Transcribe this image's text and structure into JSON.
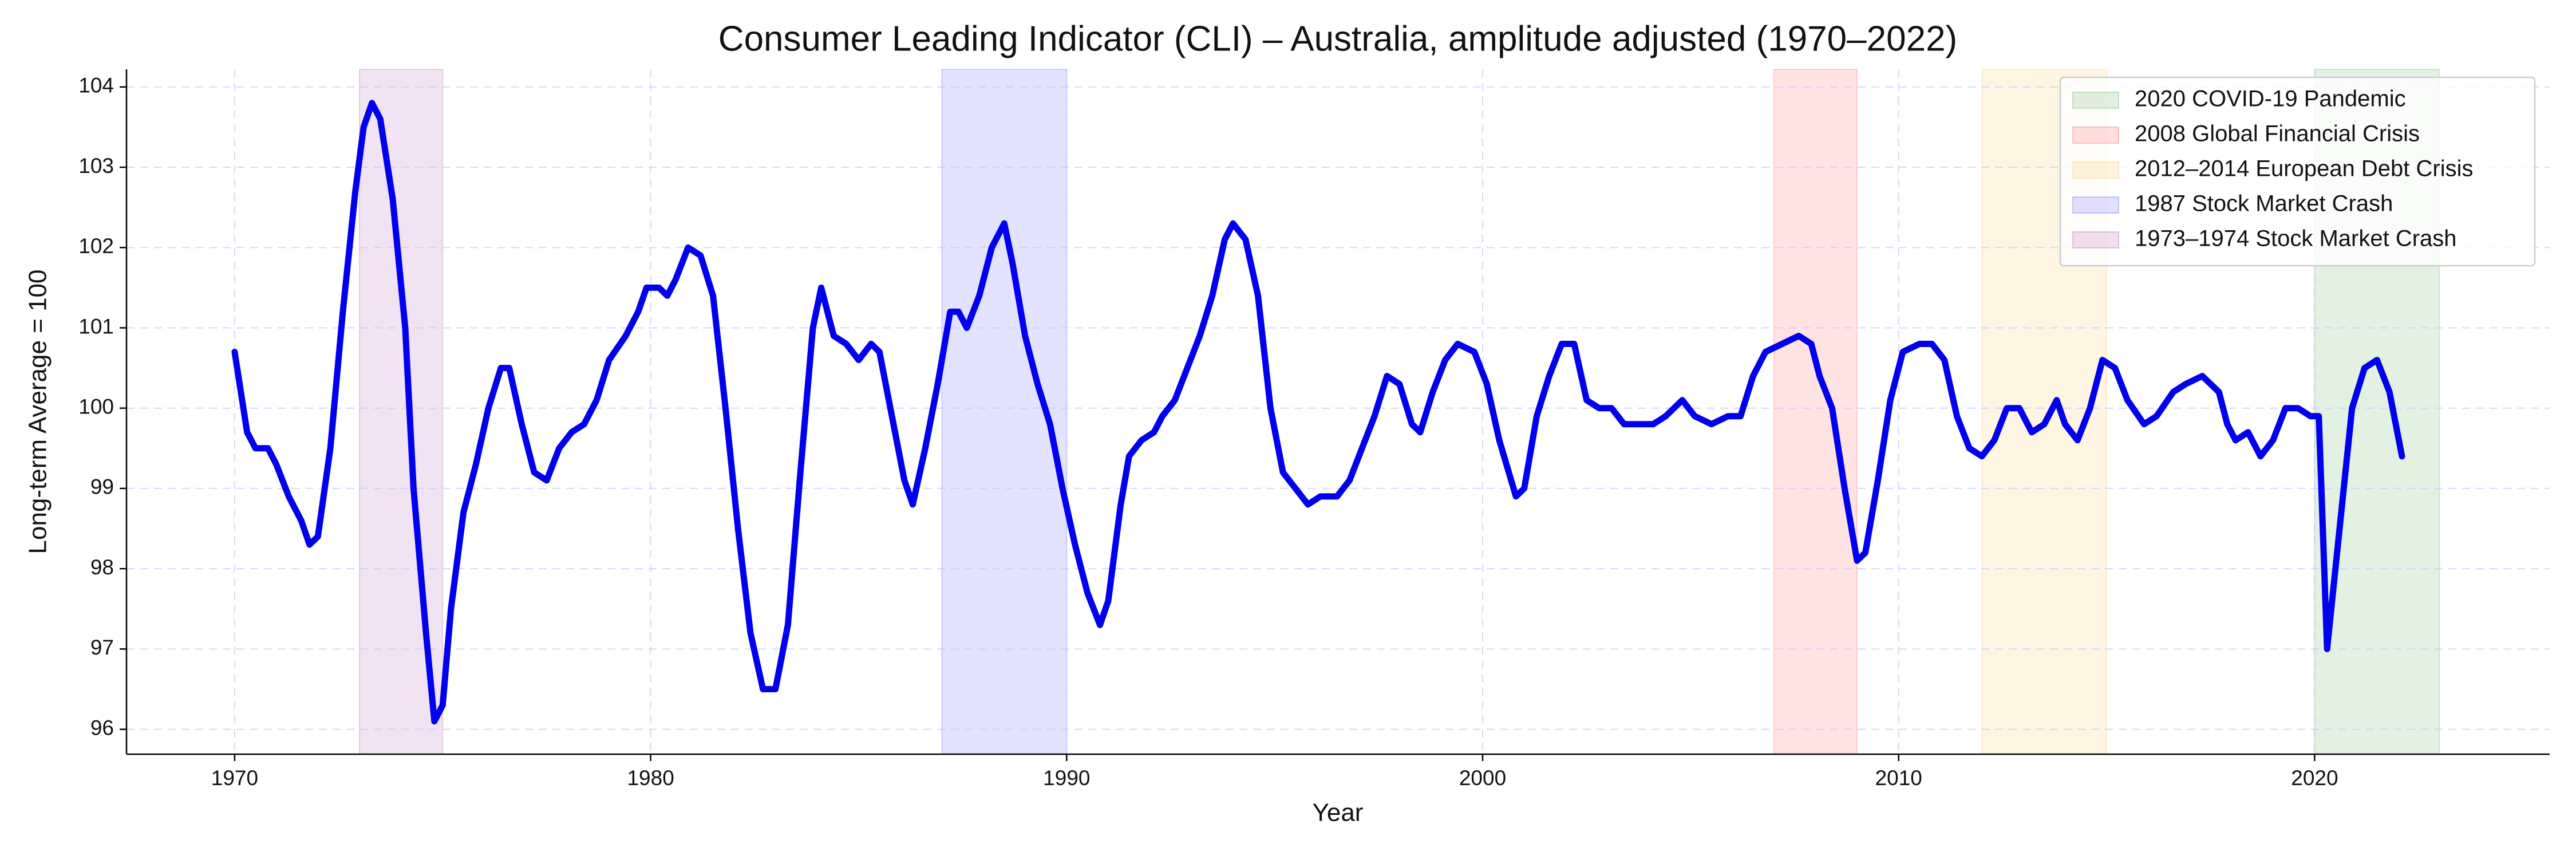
{
  "chart_data": {
    "type": "line",
    "title": "Consumer Leading Indicator (CLI) – Australia, amplitude adjusted (1970–2022)",
    "x_label": "Year",
    "y_label": "Long-term Average = 100",
    "xlim": [
      1967.4,
      2025.65
    ],
    "ylim": [
      95.69,
      104.22
    ],
    "xticks": [
      1970,
      1980,
      1990,
      2000,
      2010,
      2020
    ],
    "yticks": [
      96,
      97,
      98,
      99,
      100,
      101,
      102,
      103,
      104
    ],
    "grid": true,
    "legend": "upper right",
    "spans": [
      {
        "name": "2020 COVID-19 Pandemic",
        "start": 2020,
        "end": 2023,
        "color": "#008000"
      },
      {
        "name": "2008 Global Financial Crisis",
        "start": 2007,
        "end": 2009,
        "color": "#ff0000"
      },
      {
        "name": "2012–2014 European Debt Crisis",
        "start": 2012,
        "end": 2015,
        "color": "#ffa500"
      },
      {
        "name": "1987 Stock Market Crash",
        "start": 1987,
        "end": 1990,
        "color": "#0000ff"
      },
      {
        "name": "1973–1974 Stock Market Crash",
        "start": 1973,
        "end": 1975,
        "color": "#800080"
      }
    ],
    "series": [
      {
        "color": "#0000ee",
        "x": [
          1970.0,
          1970.3,
          1970.5,
          1970.8,
          1971.0,
          1971.3,
          1971.6,
          1971.8,
          1972.0,
          1972.3,
          1972.6,
          1972.9,
          1973.1,
          1973.3,
          1973.5,
          1973.8,
          1974.1,
          1974.3,
          1974.6,
          1974.8,
          1975.0,
          1975.2,
          1975.5,
          1975.8,
          1976.1,
          1976.4,
          1976.6,
          1976.9,
          1977.2,
          1977.5,
          1977.8,
          1978.1,
          1978.4,
          1978.7,
          1979.0,
          1979.4,
          1979.7,
          1979.9,
          1980.2,
          1980.4,
          1980.6,
          1980.9,
          1981.2,
          1981.5,
          1981.8,
          1982.1,
          1982.4,
          1982.7,
          1983.0,
          1983.3,
          1983.6,
          1983.9,
          1984.1,
          1984.4,
          1984.7,
          1985.0,
          1985.3,
          1985.5,
          1985.8,
          1986.1,
          1986.3,
          1986.6,
          1986.9,
          1987.2,
          1987.4,
          1987.6,
          1987.9,
          1988.2,
          1988.5,
          1988.7,
          1989.0,
          1989.3,
          1989.6,
          1989.9,
          1990.2,
          1990.5,
          1990.8,
          1991.0,
          1991.3,
          1991.5,
          1991.8,
          1992.1,
          1992.3,
          1992.6,
          1992.9,
          1993.2,
          1993.5,
          1993.8,
          1994.0,
          1994.3,
          1994.6,
          1994.9,
          1995.2,
          1995.5,
          1995.8,
          1996.1,
          1996.5,
          1996.8,
          1997.1,
          1997.4,
          1997.7,
          1998.0,
          1998.3,
          1998.5,
          1998.8,
          1999.1,
          1999.4,
          1999.8,
          2000.1,
          2000.4,
          2000.8,
          2001.0,
          2001.3,
          2001.6,
          2001.9,
          2002.2,
          2002.5,
          2002.8,
          2003.1,
          2003.4,
          2003.8,
          2004.1,
          2004.4,
          2004.8,
          2005.1,
          2005.5,
          2005.9,
          2006.2,
          2006.5,
          2006.8,
          2007.2,
          2007.6,
          2007.9,
          2008.1,
          2008.4,
          2008.7,
          2009.0,
          2009.2,
          2009.5,
          2009.8,
          2010.1,
          2010.5,
          2010.8,
          2011.1,
          2011.4,
          2011.7,
          2012.0,
          2012.3,
          2012.6,
          2012.9,
          2013.2,
          2013.5,
          2013.8,
          2014.0,
          2014.3,
          2014.6,
          2014.9,
          2015.2,
          2015.5,
          2015.9,
          2016.2,
          2016.6,
          2016.9,
          2017.3,
          2017.7,
          2017.9,
          2018.1,
          2018.4,
          2018.7,
          2019.0,
          2019.3,
          2019.6,
          2019.9,
          2020.1,
          2020.3,
          2020.6,
          2020.9,
          2021.2,
          2021.5,
          2021.8,
          2022.1
        ],
        "values": [
          100.7,
          99.7,
          99.5,
          99.5,
          99.3,
          98.9,
          98.6,
          98.3,
          98.4,
          99.5,
          101.2,
          102.7,
          103.5,
          103.8,
          103.6,
          102.6,
          101.0,
          99.0,
          97.2,
          96.1,
          96.3,
          97.5,
          98.7,
          99.3,
          100.0,
          100.5,
          100.5,
          99.8,
          99.2,
          99.1,
          99.5,
          99.7,
          99.8,
          100.1,
          100.6,
          100.9,
          101.2,
          101.5,
          101.5,
          101.4,
          101.6,
          102.0,
          101.9,
          101.4,
          100.0,
          98.5,
          97.2,
          96.5,
          96.5,
          97.3,
          99.2,
          101.0,
          101.5,
          100.9,
          100.8,
          100.6,
          100.8,
          100.7,
          99.9,
          99.1,
          98.8,
          99.5,
          100.3,
          101.2,
          101.2,
          101.0,
          101.4,
          102.0,
          102.3,
          101.8,
          100.9,
          100.3,
          99.8,
          99.0,
          98.3,
          97.7,
          97.3,
          97.6,
          98.8,
          99.4,
          99.6,
          99.7,
          99.9,
          100.1,
          100.5,
          100.9,
          101.4,
          102.1,
          102.3,
          102.1,
          101.4,
          100.0,
          99.2,
          99.0,
          98.8,
          98.9,
          98.9,
          99.1,
          99.5,
          99.9,
          100.4,
          100.3,
          99.8,
          99.7,
          100.2,
          100.6,
          100.8,
          100.7,
          100.3,
          99.6,
          98.9,
          99.0,
          99.9,
          100.4,
          100.8,
          100.8,
          100.1,
          100.0,
          100.0,
          99.8,
          99.8,
          99.8,
          99.9,
          100.1,
          99.9,
          99.8,
          99.9,
          99.9,
          100.4,
          100.7,
          100.8,
          100.9,
          100.8,
          100.4,
          100.0,
          99.0,
          98.1,
          98.2,
          99.1,
          100.1,
          100.7,
          100.8,
          100.8,
          100.6,
          99.9,
          99.5,
          99.4,
          99.6,
          100.0,
          100.0,
          99.7,
          99.8,
          100.1,
          99.8,
          99.6,
          100.0,
          100.6,
          100.5,
          100.1,
          99.8,
          99.9,
          100.2,
          100.3,
          100.4,
          100.2,
          99.8,
          99.6,
          99.7,
          99.4,
          99.6,
          100.0,
          100.0,
          99.9,
          99.9,
          97.0,
          98.5,
          100.0,
          100.5,
          100.6,
          100.2,
          99.4
        ]
      }
    ]
  }
}
